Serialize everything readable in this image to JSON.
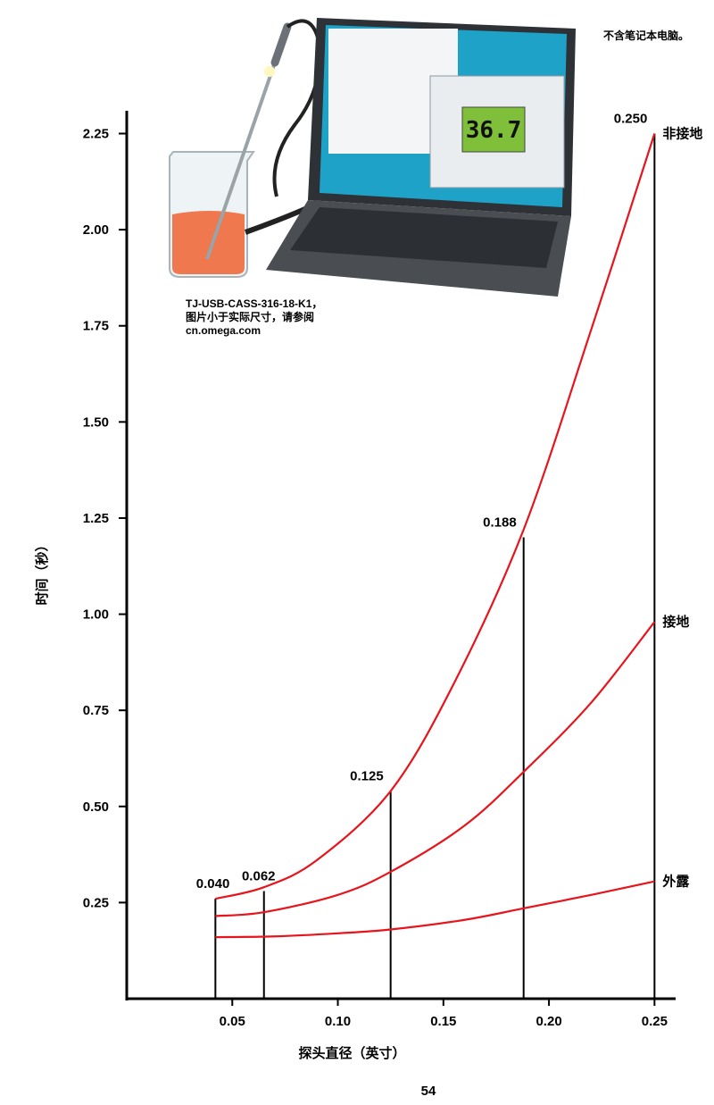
{
  "header_note": "不含笔记本电脑。",
  "photo": {
    "screen_reading": "36.7",
    "caption_lines": [
      "TJ-USB-CASS-316-18-K1，",
      "图片小于实际尺寸，请参阅",
      "cn.omega.com"
    ]
  },
  "page_number": "54",
  "colors": {
    "curve": "#e8141c",
    "axis": "#000000",
    "liquid": "#f06a3c",
    "laptop": "#3a3d42",
    "screen_bg": "#1fa2c8"
  },
  "chart_data": {
    "type": "line",
    "xlabel": "探头直径（英寸）",
    "ylabel": "时间（秒）",
    "xlim": [
      0.0,
      0.26
    ],
    "ylim": [
      0.0,
      2.3
    ],
    "x_ticks": [
      0.05,
      0.1,
      0.15,
      0.2,
      0.25
    ],
    "x_tick_labels": [
      "0.05",
      "0.10",
      "0.15",
      "0.20",
      "0.25"
    ],
    "y_ticks": [
      0.25,
      0.5,
      0.75,
      1.0,
      1.25,
      1.5,
      1.75,
      2.0,
      2.25
    ],
    "y_tick_labels": [
      "0.25",
      "0.50",
      "0.75",
      "1.00",
      "1.25",
      "1.50",
      "1.75",
      "2.00",
      "2.25"
    ],
    "series": [
      {
        "name": "非接地",
        "x": [
          0.042,
          0.065,
          0.09,
          0.125,
          0.155,
          0.188,
          0.22,
          0.25
        ],
        "y": [
          0.26,
          0.29,
          0.36,
          0.54,
          0.82,
          1.22,
          1.74,
          2.25
        ]
      },
      {
        "name": "接地",
        "x": [
          0.042,
          0.065,
          0.1,
          0.125,
          0.16,
          0.188,
          0.22,
          0.25
        ],
        "y": [
          0.215,
          0.225,
          0.27,
          0.33,
          0.45,
          0.59,
          0.77,
          0.98
        ]
      },
      {
        "name": "外露",
        "x": [
          0.042,
          0.07,
          0.1,
          0.125,
          0.16,
          0.188,
          0.22,
          0.25
        ],
        "y": [
          0.16,
          0.162,
          0.17,
          0.18,
          0.205,
          0.235,
          0.27,
          0.305
        ]
      }
    ],
    "probe_diameters": [
      {
        "label": "0.040",
        "x": 0.042,
        "y": 0.26
      },
      {
        "label": "0.062",
        "x": 0.065,
        "y": 0.28
      },
      {
        "label": "0.125",
        "x": 0.125,
        "y": 0.54
      },
      {
        "label": "0.188",
        "x": 0.188,
        "y": 1.2
      },
      {
        "label": "0.250",
        "x": 0.25,
        "y": 2.25
      }
    ]
  }
}
